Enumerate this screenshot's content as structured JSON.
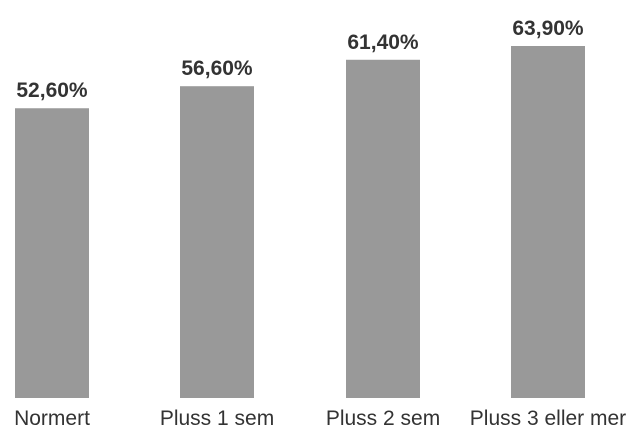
{
  "chart_data": {
    "type": "bar",
    "categories": [
      "Normert",
      "Pluss 1 sem",
      "Pluss 2 sem",
      "Pluss 3 eller mer"
    ],
    "values": [
      52.6,
      56.6,
      61.4,
      63.9
    ],
    "value_labels": [
      "52,60%",
      "56,60%",
      "61,40%",
      "63,90%"
    ],
    "ylim": [
      0,
      70
    ],
    "colors": {
      "bar": "#999999",
      "text": "#333333"
    },
    "grid": false,
    "legend": "none"
  }
}
